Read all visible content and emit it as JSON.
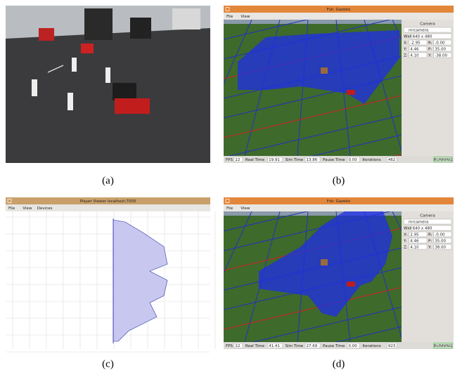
{
  "panels": [
    {
      "caption": "(a)"
    },
    {
      "caption": "(b)",
      "window": {
        "title": "Fsk: Gazebo",
        "menu": [
          "File",
          "View"
        ],
        "camera": {
          "heading": "Camera",
          "name": "mrcamera",
          "rows": [
            [
              {
                "label": "WxH",
                "value": "640 x 480"
              }
            ],
            [
              {
                "label": "X:",
                "value": "-2.95"
              },
              {
                "label": "R:",
                "value": "-0.00"
              }
            ],
            [
              {
                "label": "Y:",
                "value": "4.46"
              },
              {
                "label": "P:",
                "value": "35.00"
              }
            ],
            [
              {
                "label": "Z:",
                "value": "4.10"
              },
              {
                "label": "Y:",
                "value": "-38.00"
              }
            ]
          ]
        },
        "status": [
          {
            "label": "FPS",
            "value": "22"
          },
          {
            "label": "Real Time",
            "value": "19.91"
          },
          {
            "label": "Sim Time",
            "value": "13.86"
          },
          {
            "label": "Pause Time",
            "value": "0.00"
          },
          {
            "label": "Iterations",
            "value": "462"
          }
        ],
        "state": "RUNNING"
      }
    },
    {
      "caption": "(c)",
      "window": {
        "title": "Player Viewer localhost:7000",
        "menu": [
          "File",
          "View",
          "Devices"
        ]
      }
    },
    {
      "caption": "(d)",
      "window": {
        "title": "Fsk: Gazebo",
        "menu": [
          "File",
          "View"
        ],
        "camera": {
          "heading": "Camera",
          "name": "mrcamera",
          "rows": [
            [
              {
                "label": "WxH",
                "value": "640 x 480"
              }
            ],
            [
              {
                "label": "X:",
                "value": "2.95"
              },
              {
                "label": "R:",
                "value": "-0.00"
              }
            ],
            [
              {
                "label": "Y:",
                "value": "4.46"
              },
              {
                "label": "P:",
                "value": "35.00"
              }
            ],
            [
              {
                "label": "Z:",
                "value": "4.10"
              },
              {
                "label": "Y:",
                "value": "38.00"
              }
            ]
          ]
        },
        "status": [
          {
            "label": "FPS",
            "value": "22"
          },
          {
            "label": "Real Time",
            "value": "41.41"
          },
          {
            "label": "Sim Time",
            "value": "27.69"
          },
          {
            "label": "Pause Time",
            "value": "0.00"
          },
          {
            "label": "Iterations",
            "value": "923"
          }
        ],
        "state": "RUNNING"
      }
    }
  ]
}
